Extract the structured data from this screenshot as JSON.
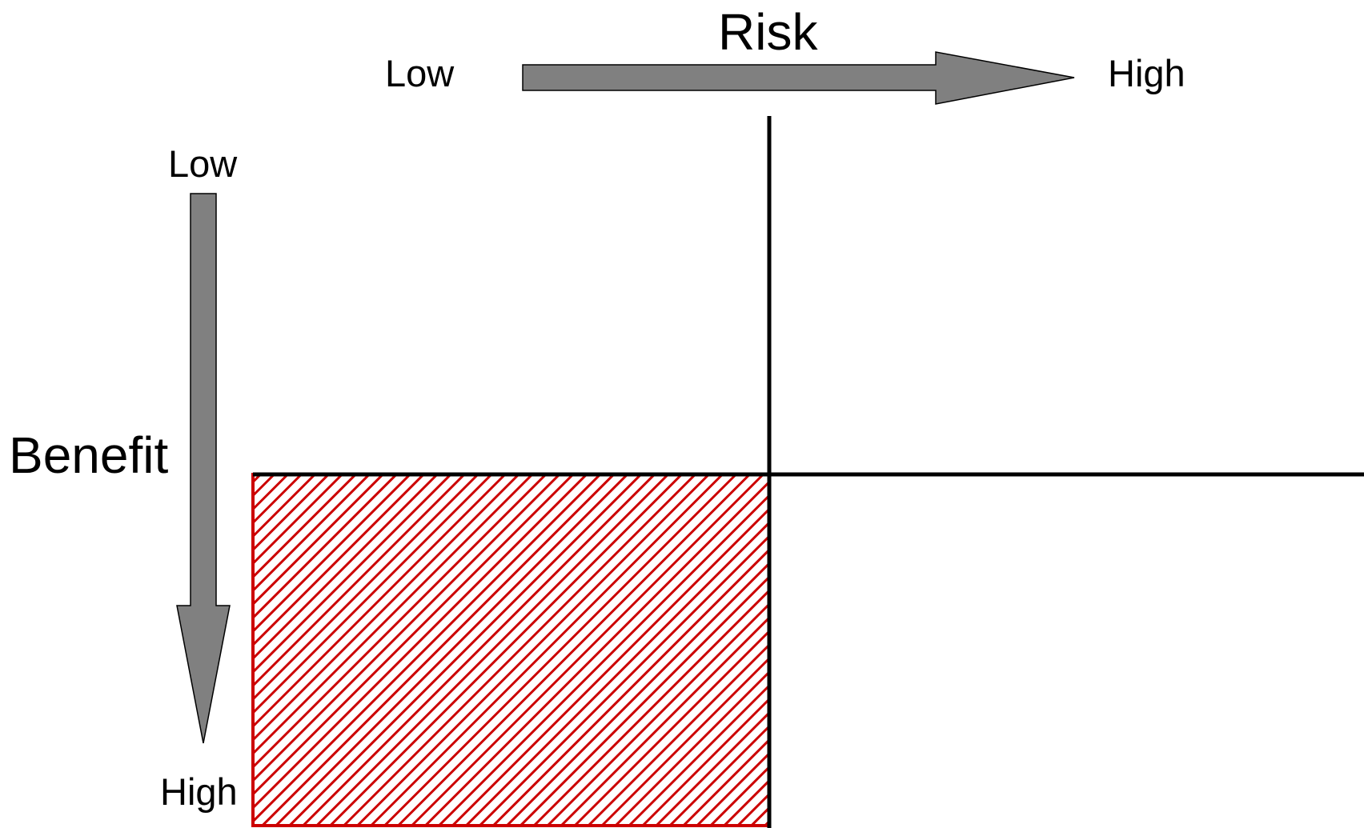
{
  "risk_axis": {
    "title": "Risk",
    "low_label": "Low",
    "high_label": "High"
  },
  "benefit_axis": {
    "title": "Benefit",
    "low_label": "Low",
    "high_label": "High"
  },
  "colors": {
    "arrow_fill": "#808080",
    "arrow_stroke": "#000000",
    "divider": "#000000",
    "highlight_hatch": "#cc0000",
    "background": "#ffffff"
  }
}
